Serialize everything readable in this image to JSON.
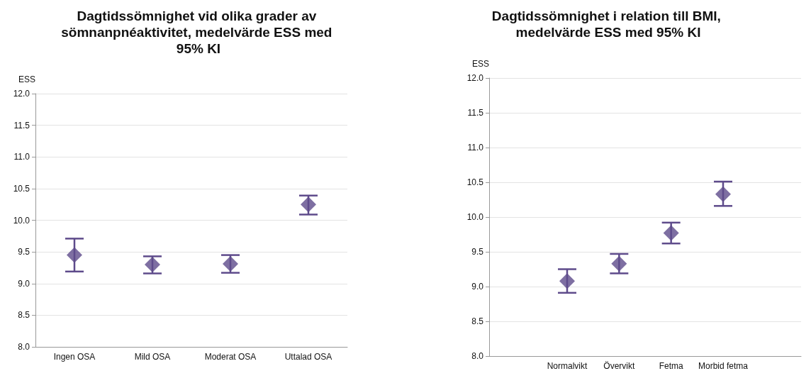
{
  "chart_data": [
    {
      "type": "scatter",
      "title": "Dagtidssömnighet vid olika grader av sömnanpnéaktivitet, medelvärde ESS med 95% KI",
      "ylabel": "ESS",
      "categories": [
        "Ingen OSA",
        "Mild OSA",
        "Moderat OSA",
        "Uttalad OSA"
      ],
      "series": [
        {
          "color": "#5e4b8b",
          "values": [
            9.45,
            9.3,
            9.31,
            10.25
          ],
          "errors": [
            [
              9.19,
              9.71
            ],
            [
              9.16,
              9.43
            ],
            [
              9.17,
              9.45
            ],
            [
              10.09,
              10.39
            ]
          ]
        }
      ],
      "ylim": [
        8,
        12
      ],
      "yticks": [
        {
          "value": 8,
          "label": "8.0"
        },
        {
          "value": 8.5,
          "label": "8.5"
        },
        {
          "value": 9,
          "label": "9.0"
        },
        {
          "value": 9.5,
          "label": "9.5"
        },
        {
          "value": 10,
          "label": "10.0"
        },
        {
          "value": 10.5,
          "label": "10.5"
        },
        {
          "value": 11,
          "label": "11.0"
        },
        {
          "value": 11.5,
          "label": "11.5"
        },
        {
          "value": 12,
          "label": "12.0"
        }
      ],
      "grid": "y",
      "marker": "diamond"
    },
    {
      "type": "scatter",
      "title": "Dagtidssömnighet i relation till BMI, medelvärde ESS med 95% KI",
      "ylabel": "ESS",
      "categories": [
        null,
        "Normalvikt",
        "Övervikt",
        "Fetma",
        "Morbid fetma",
        null
      ],
      "series": [
        {
          "color": "#5e4b8b",
          "values": [
            null,
            9.08,
            9.33,
            9.77,
            10.33,
            null
          ],
          "errors": [
            null,
            [
              8.91,
              9.25
            ],
            [
              9.19,
              9.47
            ],
            [
              9.62,
              9.92
            ],
            [
              10.16,
              10.51
            ],
            null
          ]
        }
      ],
      "ylim": [
        8,
        12
      ],
      "yticks": [
        {
          "value": 8,
          "label": "8.0"
        },
        {
          "value": 8.5,
          "label": "8.5"
        },
        {
          "value": 9,
          "label": "9.0"
        },
        {
          "value": 9.5,
          "label": "9.5"
        },
        {
          "value": 10,
          "label": "10.0"
        },
        {
          "value": 10.5,
          "label": "10.5"
        },
        {
          "value": 11,
          "label": "11.0"
        },
        {
          "value": 11.5,
          "label": "11.5"
        },
        {
          "value": 12,
          "label": "12.0"
        }
      ],
      "grid": "y",
      "marker": "diamond"
    }
  ]
}
